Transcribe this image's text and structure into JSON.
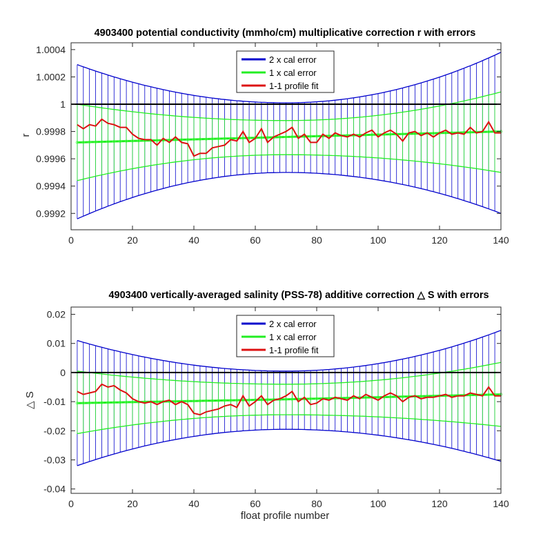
{
  "chart_data": [
    {
      "type": "line",
      "title": "4903400 potential conductivity (mmho/cm) multiplicative correction r with errors",
      "xlabel": "",
      "ylabel": "r",
      "xlim": [
        0,
        140
      ],
      "ylim": [
        0.99908,
        1.00045
      ],
      "xticks": [
        "0",
        "20",
        "40",
        "60",
        "80",
        "100",
        "120",
        "140"
      ],
      "yticks": [
        "0.9992",
        "0.9994",
        "0.9996",
        "0.9998",
        "1",
        "1.0002",
        "1.0004"
      ],
      "reference_line": 1.0,
      "legend": {
        "placement": "top-center",
        "entries": [
          "2 x cal error",
          "1 x cal error",
          "1-1 profile fit"
        ]
      },
      "colors": {
        "two_cal": "#0000cc",
        "one_cal": "#22ee22",
        "fit": "#dd1111",
        "ref": "#000000"
      },
      "series": [
        {
          "name": "2 x cal error",
          "x": [
            2,
            70,
            140
          ],
          "upper": [
            1.00029,
            1.00001,
            1.00038
          ],
          "lower": [
            0.99916,
            0.9995,
            0.9992
          ]
        },
        {
          "name": "1 x cal error",
          "x": [
            2,
            70,
            140
          ],
          "upper": [
            1.0,
            0.99988,
            1.00009
          ],
          "lower": [
            0.99944,
            0.99963,
            0.9995
          ],
          "center": [
            0.99972,
            0.99976,
            0.9998
          ]
        },
        {
          "name": "1-1 profile fit",
          "x": [
            2,
            4,
            6,
            8,
            10,
            12,
            14,
            16,
            18,
            20,
            22,
            24,
            26,
            28,
            30,
            32,
            34,
            36,
            38,
            40,
            42,
            44,
            46,
            48,
            50,
            52,
            54,
            56,
            58,
            60,
            62,
            64,
            66,
            68,
            70,
            72,
            74,
            76,
            78,
            80,
            82,
            84,
            86,
            88,
            90,
            92,
            94,
            96,
            98,
            100,
            102,
            104,
            106,
            108,
            110,
            112,
            114,
            116,
            118,
            120,
            122,
            124,
            126,
            128,
            130,
            132,
            134,
            136,
            138,
            140
          ],
          "y": [
            0.99985,
            0.99982,
            0.99985,
            0.99984,
            0.99989,
            0.99986,
            0.99985,
            0.99983,
            0.99983,
            0.99978,
            0.99975,
            0.99974,
            0.99974,
            0.9997,
            0.99975,
            0.99972,
            0.99976,
            0.99972,
            0.99971,
            0.99962,
            0.99964,
            0.99964,
            0.99968,
            0.99969,
            0.9997,
            0.99974,
            0.99973,
            0.9998,
            0.99972,
            0.99975,
            0.99982,
            0.99972,
            0.99976,
            0.99978,
            0.9998,
            0.99983,
            0.99975,
            0.99978,
            0.99972,
            0.99972,
            0.99978,
            0.99975,
            0.99979,
            0.99977,
            0.99976,
            0.99978,
            0.99976,
            0.99979,
            0.99981,
            0.99976,
            0.99979,
            0.99981,
            0.99978,
            0.99973,
            0.99979,
            0.9998,
            0.99977,
            0.99979,
            0.99976,
            0.99979,
            0.99981,
            0.99978,
            0.99979,
            0.99978,
            0.99983,
            0.99979,
            0.9998,
            0.99987,
            0.99979,
            0.99979
          ]
        }
      ]
    },
    {
      "type": "line",
      "title": "4903400 vertically-averaged salinity (PSS-78) additive correction △ S with errors",
      "xlabel": "float profile number",
      "ylabel": "△ S",
      "xlim": [
        0,
        140
      ],
      "ylim": [
        -0.0415,
        0.0225
      ],
      "xticks": [
        "0",
        "20",
        "40",
        "60",
        "80",
        "100",
        "120",
        "140"
      ],
      "yticks": [
        "-0.04",
        "-0.03",
        "-0.02",
        "-0.01",
        "0",
        "0.01",
        "0.02"
      ],
      "reference_line": 0,
      "legend": {
        "placement": "top-center",
        "entries": [
          "2 x cal error",
          "1 x cal error",
          "1-1 profile fit"
        ]
      },
      "colors": {
        "two_cal": "#0000cc",
        "one_cal": "#22ee22",
        "fit": "#dd1111",
        "ref": "#000000"
      },
      "series": [
        {
          "name": "2 x cal error",
          "x": [
            2,
            70,
            140
          ],
          "upper": [
            0.011,
            0.0005,
            0.0145
          ],
          "lower": [
            -0.032,
            -0.0195,
            -0.0305
          ]
        },
        {
          "name": "1 x cal error",
          "x": [
            2,
            70,
            140
          ],
          "upper": [
            0.0005,
            -0.004,
            0.0035
          ],
          "lower": [
            -0.021,
            -0.0145,
            -0.0185
          ],
          "center": [
            -0.0105,
            -0.0092,
            -0.0075
          ]
        },
        {
          "name": "1-1 profile fit",
          "x": [
            2,
            4,
            6,
            8,
            10,
            12,
            14,
            16,
            18,
            20,
            22,
            24,
            26,
            28,
            30,
            32,
            34,
            36,
            38,
            40,
            42,
            44,
            46,
            48,
            50,
            52,
            54,
            56,
            58,
            60,
            62,
            64,
            66,
            68,
            70,
            72,
            74,
            76,
            78,
            80,
            82,
            84,
            86,
            88,
            90,
            92,
            94,
            96,
            98,
            100,
            102,
            104,
            106,
            108,
            110,
            112,
            114,
            116,
            118,
            120,
            122,
            124,
            126,
            128,
            130,
            132,
            134,
            136,
            138,
            140
          ],
          "y": [
            -0.0065,
            -0.0075,
            -0.007,
            -0.0065,
            -0.004,
            -0.005,
            -0.0045,
            -0.006,
            -0.007,
            -0.009,
            -0.01,
            -0.0105,
            -0.01,
            -0.011,
            -0.01,
            -0.0095,
            -0.011,
            -0.01,
            -0.011,
            -0.014,
            -0.0145,
            -0.0135,
            -0.013,
            -0.0125,
            -0.0115,
            -0.011,
            -0.012,
            -0.008,
            -0.0115,
            -0.01,
            -0.008,
            -0.011,
            -0.0095,
            -0.009,
            -0.008,
            -0.0065,
            -0.01,
            -0.0085,
            -0.011,
            -0.0105,
            -0.009,
            -0.0095,
            -0.0085,
            -0.009,
            -0.0095,
            -0.008,
            -0.009,
            -0.0075,
            -0.0085,
            -0.0095,
            -0.008,
            -0.007,
            -0.008,
            -0.01,
            -0.0085,
            -0.008,
            -0.009,
            -0.0085,
            -0.0085,
            -0.008,
            -0.0075,
            -0.0085,
            -0.008,
            -0.008,
            -0.007,
            -0.0075,
            -0.008,
            -0.005,
            -0.008,
            -0.008
          ]
        }
      ]
    }
  ]
}
